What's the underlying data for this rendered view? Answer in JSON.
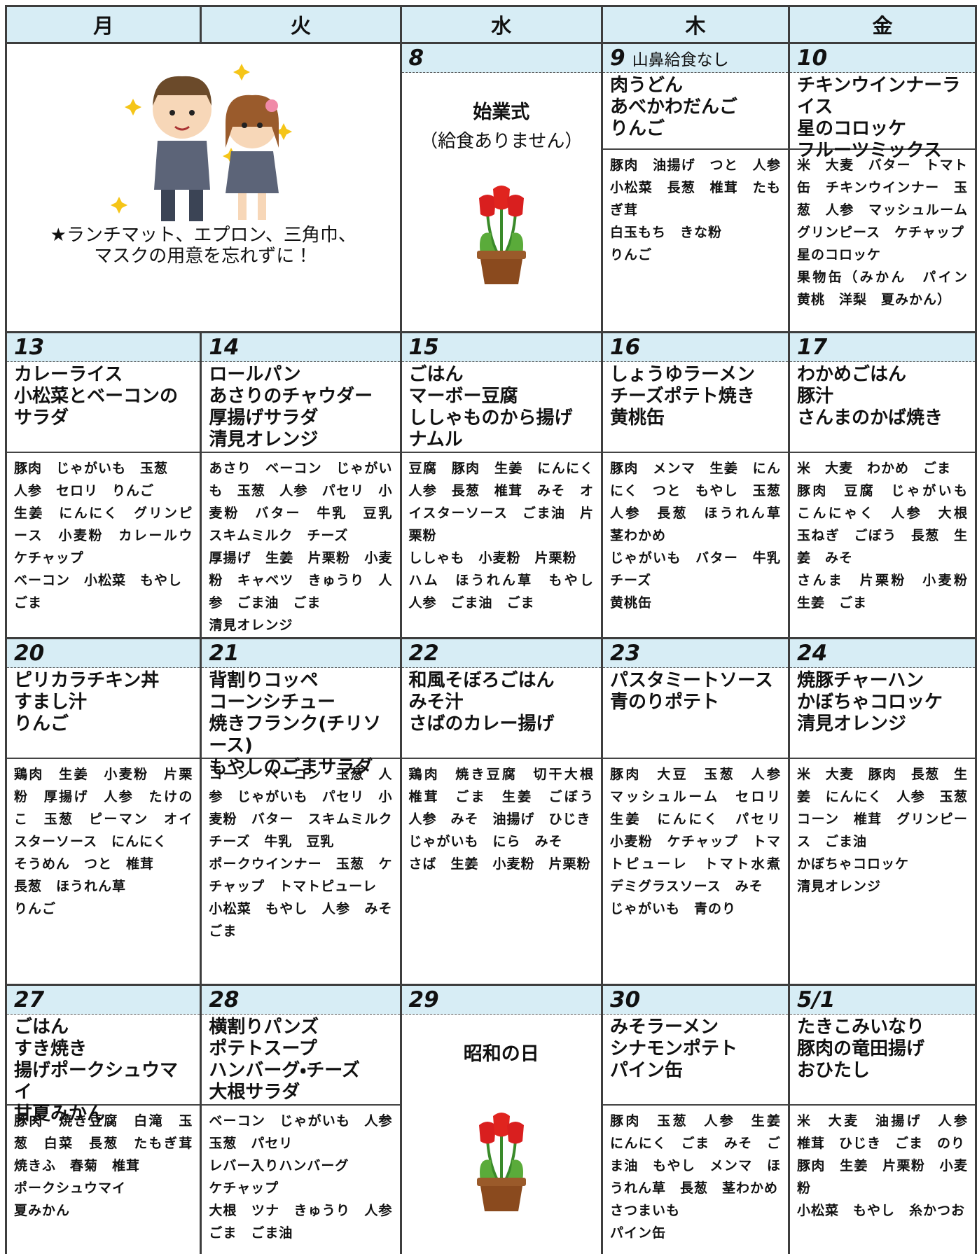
{
  "header": {
    "days": [
      "月",
      "火",
      "水",
      "木",
      "金"
    ]
  },
  "weeks": [
    {
      "notice": {
        "lines": [
          "★ランチマット、エプロン、三角巾、",
          "マスクの用意を忘れずに！"
        ]
      },
      "cells": [
        {
          "date": "8",
          "event": "始業式",
          "event_note": "（給食ありません）"
        },
        {
          "date": "9",
          "note": "山鼻給食なし",
          "menu": [
            "肉うどん",
            "あべかわだんご",
            "りんご"
          ],
          "ingredients": [
            "豚肉　油揚げ　つと　人参　小松菜　長葱　椎茸　たもぎ茸",
            "白玉もち　きな粉",
            "りんご"
          ]
        },
        {
          "date": "10",
          "menu": [
            "チキンウインナーライス",
            "星のコロッケ",
            "フルーツミックス"
          ],
          "ingredients": [
            "米　大麦　バター　トマト缶　チキンウインナー　玉葱　人参　マッシュルーム　グリンピース　ケチャップ",
            "星のコロッケ",
            "果物缶（みかん　パイン　黄桃　洋梨　夏みかん）"
          ]
        }
      ]
    },
    {
      "cells": [
        {
          "date": "13",
          "menu": [
            "カレーライス",
            "小松菜とベーコンのサラダ"
          ],
          "ingredients": [
            "豚肉　じゃがいも　玉葱",
            "人参　セロリ　りんご",
            "生姜　にんにく　グリンピース　小麦粉　カレールウ　ケチャップ",
            "ベーコン　小松菜　もやし",
            "ごま"
          ]
        },
        {
          "date": "14",
          "menu": [
            "ロールパン",
            "あさりのチャウダー",
            "厚揚げサラダ",
            "清見オレンジ"
          ],
          "ingredients": [
            "あさり　ベーコン　じゃがいも　玉葱　人参　パセリ　小麦粉　バター　牛乳　豆乳　スキムミルク　チーズ",
            "厚揚げ　生姜　片栗粉　小麦粉　キャベツ　きゅうり　人参　ごま油　ごま",
            "清見オレンジ"
          ]
        },
        {
          "date": "15",
          "menu": [
            "ごはん",
            "マーボー豆腐",
            "ししゃものから揚げ",
            "ナムル"
          ],
          "ingredients": [
            "豆腐　豚肉　生姜　にんにく　人参　長葱　椎茸　みそ　オイスターソース　ごま油　片栗粉",
            "ししゃも　小麦粉　片栗粉",
            "ハム　ほうれん草　もやし　人参　ごま油　ごま"
          ]
        },
        {
          "date": "16",
          "menu": [
            "しょうゆラーメン",
            "チーズポテト焼き",
            "黄桃缶"
          ],
          "ingredients": [
            "豚肉　メンマ　生姜　にんにく　つと　もやし　玉葱　人参　長葱　ほうれん草　茎わかめ",
            "じゃがいも　バター　牛乳　チーズ",
            "黄桃缶"
          ]
        },
        {
          "date": "17",
          "menu": [
            "わかめごはん",
            "豚汁",
            "さんまのかば焼き"
          ],
          "ingredients": [
            "米　大麦　わかめ　ごま",
            "豚肉　豆腐　じゃがいも　こんにゃく　人参　大根　玉ねぎ　ごぼう　長葱　生姜　みそ",
            "さんま　片栗粉　小麦粉　生姜　ごま"
          ]
        }
      ]
    },
    {
      "cells": [
        {
          "date": "20",
          "menu": [
            "ピリカラチキン丼",
            "すまし汁",
            "りんご"
          ],
          "ingredients": [
            "鶏肉　生姜　小麦粉　片栗粉　厚揚げ　人参　たけのこ　玉葱　ピーマン　オイスターソース　にんにく",
            "そうめん　つと　椎茸",
            "長葱　ほうれん草",
            "りんご"
          ]
        },
        {
          "date": "21",
          "menu": [
            "背割りコッペ",
            "コーンシチュー",
            "焼きフランク(チリソース)",
            "もやしのごまサラダ"
          ],
          "ingredients": [
            "コーン　ベーコン　玉葱　人参　じゃがいも　パセリ　小麦粉　バター　スキムミルク　チーズ　牛乳　豆乳",
            "ポークウインナー　玉葱　ケチャップ　トマトピューレ",
            "小松菜　もやし　人参　みそ　ごま"
          ]
        },
        {
          "date": "22",
          "menu": [
            "和風そぼろごはん",
            "みそ汁",
            "さばのカレー揚げ"
          ],
          "ingredients": [
            "鶏肉　焼き豆腐　切干大根　椎茸　ごま　生姜　ごぼう　人参　みそ　油揚げ　ひじき",
            "じゃがいも　にら　みそ",
            "さば　生姜　小麦粉　片栗粉"
          ]
        },
        {
          "date": "23",
          "menu": [
            "パスタミートソース",
            "青のりポテト"
          ],
          "ingredients": [
            "豚肉　大豆　玉葱　人参　マッシュルーム　セロリ　生姜　にんにく　パセリ　小麦粉　ケチャップ　トマトピューレ　トマト水煮　デミグラスソース　みそ",
            "じゃがいも　青のり"
          ]
        },
        {
          "date": "24",
          "menu": [
            "焼豚チャーハン",
            "かぼちゃコロッケ",
            "清見オレンジ"
          ],
          "ingredients": [
            "米　大麦　豚肉　長葱　生姜　にんにく　人参　玉葱　コーン　椎茸　グリンピース　ごま油",
            "かぼちゃコロッケ",
            "清見オレンジ"
          ]
        }
      ]
    },
    {
      "cells": [
        {
          "date": "27",
          "menu": [
            "ごはん",
            "すき焼き",
            "揚げポークシュウマイ",
            "甘夏みかん"
          ],
          "ingredients": [
            "豚肉　焼き豆腐　白滝　玉葱　白菜　長葱　たもぎ茸　焼きふ　春菊　椎茸",
            "ポークシュウマイ",
            "夏みかん"
          ]
        },
        {
          "date": "28",
          "menu": [
            "横割りパンズ",
            "ポテトスープ",
            "ハンバーグ・チーズ",
            "大根サラダ"
          ],
          "ingredients": [
            "ベーコン　じゃがいも　人参　玉葱　パセリ",
            "レバー入りハンバーグ",
            "ケチャップ",
            "大根　ツナ　きゅうり　人参　ごま　ごま油"
          ]
        },
        {
          "date": "29",
          "event": "昭和の日"
        },
        {
          "date": "30",
          "menu": [
            "みそラーメン",
            "シナモンポテト",
            "パイン缶"
          ],
          "ingredients": [
            "豚肉　玉葱　人参　生姜　にんにく　ごま　みそ　ごま油　もやし　メンマ　ほうれん草　長葱　茎わかめ",
            "さつまいも",
            "パイン缶"
          ]
        },
        {
          "date": "5/1",
          "menu": [
            "たきこみいなり",
            "豚肉の竜田揚げ",
            "おひたし"
          ],
          "ingredients": [
            "米　大麦　油揚げ　人参　椎茸　ひじき　ごま　のり",
            "豚肉　生姜　片栗粉　小麦粉",
            "小松菜　もやし　糸かつお"
          ]
        }
      ]
    }
  ]
}
